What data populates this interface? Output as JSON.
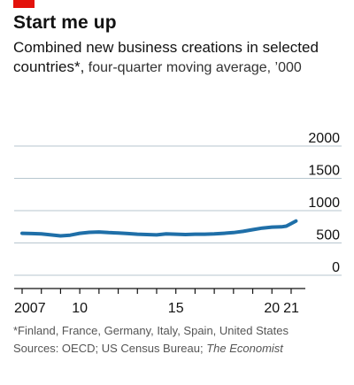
{
  "header": {
    "accent_color": "#e3120b",
    "title": "Start me up",
    "subtitle_bold": "Combined new business creations in selected countries*,",
    "subtitle_light": " four-quarter moving average, ’000"
  },
  "footer": {
    "footnote": "*Finland, France, Germany, Italy, Spain, United States",
    "sources_prefix": "Sources: OECD; US Census Bureau; ",
    "sources_italic": "The Economist"
  },
  "colors": {
    "line": "#1f6fa8",
    "grid": "#b7c6cf",
    "axis": "#121212"
  },
  "chart_data": {
    "type": "line",
    "title": "Start me up",
    "xlabel": "",
    "ylabel": "",
    "xlim": [
      2007,
      2021.6
    ],
    "ylim": [
      0,
      2000
    ],
    "y_ticks": [
      0,
      500,
      1000,
      1500,
      2000
    ],
    "y_tick_labels": [
      "0",
      "500",
      "1000",
      "1500",
      "2000"
    ],
    "x_tick_labels": [
      {
        "x": 2007,
        "label": "2007"
      },
      {
        "x": 2010,
        "label": "10"
      },
      {
        "x": 2015,
        "label": "15"
      },
      {
        "x": 2020,
        "label": "20"
      },
      {
        "x": 2021,
        "label": "21"
      }
    ],
    "x_ticks": [
      2007,
      2008,
      2009,
      2010,
      2011,
      2012,
      2013,
      2014,
      2015,
      2016,
      2017,
      2018,
      2019,
      2020,
      2021
    ],
    "grid": true,
    "series": [
      {
        "name": "",
        "x": [
          2007.0,
          2007.5,
          2008.0,
          2008.5,
          2009.0,
          2009.5,
          2010.0,
          2010.5,
          2011.0,
          2011.5,
          2012.0,
          2012.5,
          2013.0,
          2013.5,
          2014.0,
          2014.5,
          2015.0,
          2015.5,
          2016.0,
          2016.5,
          2017.0,
          2017.5,
          2018.0,
          2018.5,
          2019.0,
          2019.5,
          2020.0,
          2020.5,
          2020.75,
          2021.0,
          2021.25
        ],
        "y": [
          650,
          645,
          640,
          625,
          610,
          620,
          650,
          665,
          670,
          660,
          655,
          645,
          635,
          630,
          625,
          640,
          635,
          630,
          635,
          635,
          640,
          650,
          660,
          680,
          705,
          730,
          745,
          750,
          760,
          800,
          840
        ]
      }
    ]
  }
}
